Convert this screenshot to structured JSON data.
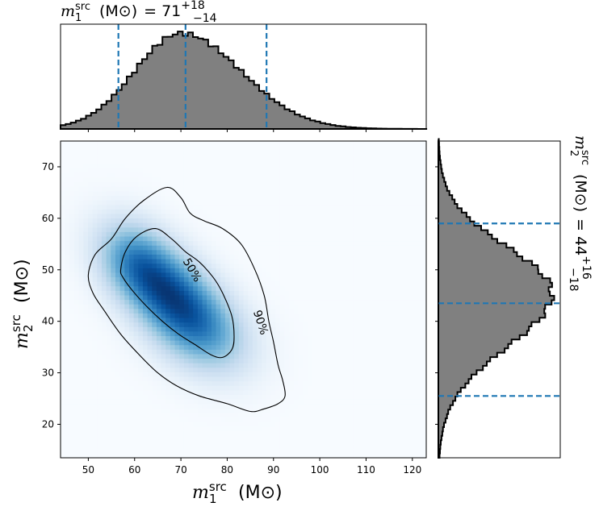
{
  "chart_data": [
    {
      "type": "heatmap",
      "panel": "joint",
      "x": {
        "label_symbol": "m",
        "label_superscript": "src",
        "label_subscript": "1",
        "label_unit": "(M⊙)",
        "range": [
          44,
          123
        ],
        "ticks": [
          50,
          60,
          70,
          80,
          90,
          100,
          110,
          120
        ]
      },
      "y": {
        "label_symbol": "m",
        "label_superscript": "src",
        "label_subscript": "2",
        "label_unit": "(M⊙)",
        "range": [
          13.5,
          75
        ],
        "ticks": [
          20,
          30,
          40,
          50,
          60,
          70
        ]
      },
      "density": {
        "colormap": "Blues",
        "components": [
          {
            "mx": 67,
            "my": 46,
            "sx": 7.5,
            "sy": 6.5,
            "rho": -0.55,
            "w": 1.0
          },
          {
            "mx": 74,
            "my": 38,
            "sx": 7,
            "sy": 5.5,
            "rho": -0.3,
            "w": 0.45
          },
          {
            "mx": 60,
            "my": 52,
            "sx": 5,
            "sy": 5,
            "rho": -0.2,
            "w": 0.35
          }
        ]
      },
      "contours": [
        {
          "label": "50%",
          "points": [
            [
              57,
              50
            ],
            [
              58,
              53.5
            ],
            [
              60.5,
              56.5
            ],
            [
              64.5,
              58
            ],
            [
              68,
              56
            ],
            [
              71,
              53.5
            ],
            [
              74,
              51.5
            ],
            [
              77,
              48.5
            ],
            [
              79,
              45.5
            ],
            [
              81,
              41
            ],
            [
              81.5,
              37
            ],
            [
              81,
              34.5
            ],
            [
              79,
              33
            ],
            [
              76.5,
              33.5
            ],
            [
              73,
              35.5
            ],
            [
              69.5,
              37.5
            ],
            [
              66,
              40
            ],
            [
              62.5,
              43
            ],
            [
              59.5,
              46
            ],
            [
              57.5,
              48.5
            ]
          ]
        },
        {
          "label": "90%",
          "points": [
            [
              50,
              49
            ],
            [
              51.5,
              53
            ],
            [
              55,
              56
            ],
            [
              58,
              60
            ],
            [
              62,
              63.5
            ],
            [
              67,
              66
            ],
            [
              70,
              64
            ],
            [
              72,
              61
            ],
            [
              75,
              59.5
            ],
            [
              79,
              58
            ],
            [
              83,
              55
            ],
            [
              86,
              50
            ],
            [
              88,
              45
            ],
            [
              89,
              40
            ],
            [
              90,
              36
            ],
            [
              91,
              31.5
            ],
            [
              92,
              28.5
            ],
            [
              92.5,
              25.5
            ],
            [
              91,
              24
            ],
            [
              88,
              23
            ],
            [
              85,
              22.5
            ],
            [
              80,
              24
            ],
            [
              74,
              25.5
            ],
            [
              69,
              27.5
            ],
            [
              65,
              30
            ],
            [
              61,
              33.5
            ],
            [
              57,
              37.5
            ],
            [
              53.5,
              42
            ],
            [
              51,
              45.5
            ]
          ]
        }
      ]
    },
    {
      "type": "histogram",
      "panel": "top-marginal",
      "title": {
        "symbol": "m",
        "superscript": "src",
        "subscript": "1",
        "unit": "(M⊙)",
        "equals": "=",
        "median": "71",
        "upper": "+18",
        "lower": "−14"
      },
      "x_range": [
        44,
        123
      ],
      "bin_width": 1.1,
      "dist": {
        "peak": 70,
        "sigma_left": 10,
        "sigma_right": 13
      },
      "quantile_lines": [
        56.5,
        71,
        88.5
      ],
      "fill": "#808080",
      "line_color": "#1f77b4"
    },
    {
      "type": "histogram",
      "panel": "right-marginal",
      "orientation": "horizontal",
      "title": {
        "symbol": "m",
        "superscript": "src",
        "subscript": "2",
        "unit": "(M⊙)",
        "equals": "=",
        "median": "44",
        "upper": "+16",
        "lower": "−18"
      },
      "y_range": [
        13.5,
        75
      ],
      "bin_width": 0.85,
      "dist": {
        "peak": 45.5,
        "sigma_low": 10.5,
        "sigma_high": 9
      },
      "quantile_lines": [
        25.5,
        43.5,
        59
      ],
      "fill": "#808080",
      "line_color": "#1f77b4"
    }
  ],
  "contour_labels": {
    "inner": "50%",
    "outer": "90%"
  }
}
